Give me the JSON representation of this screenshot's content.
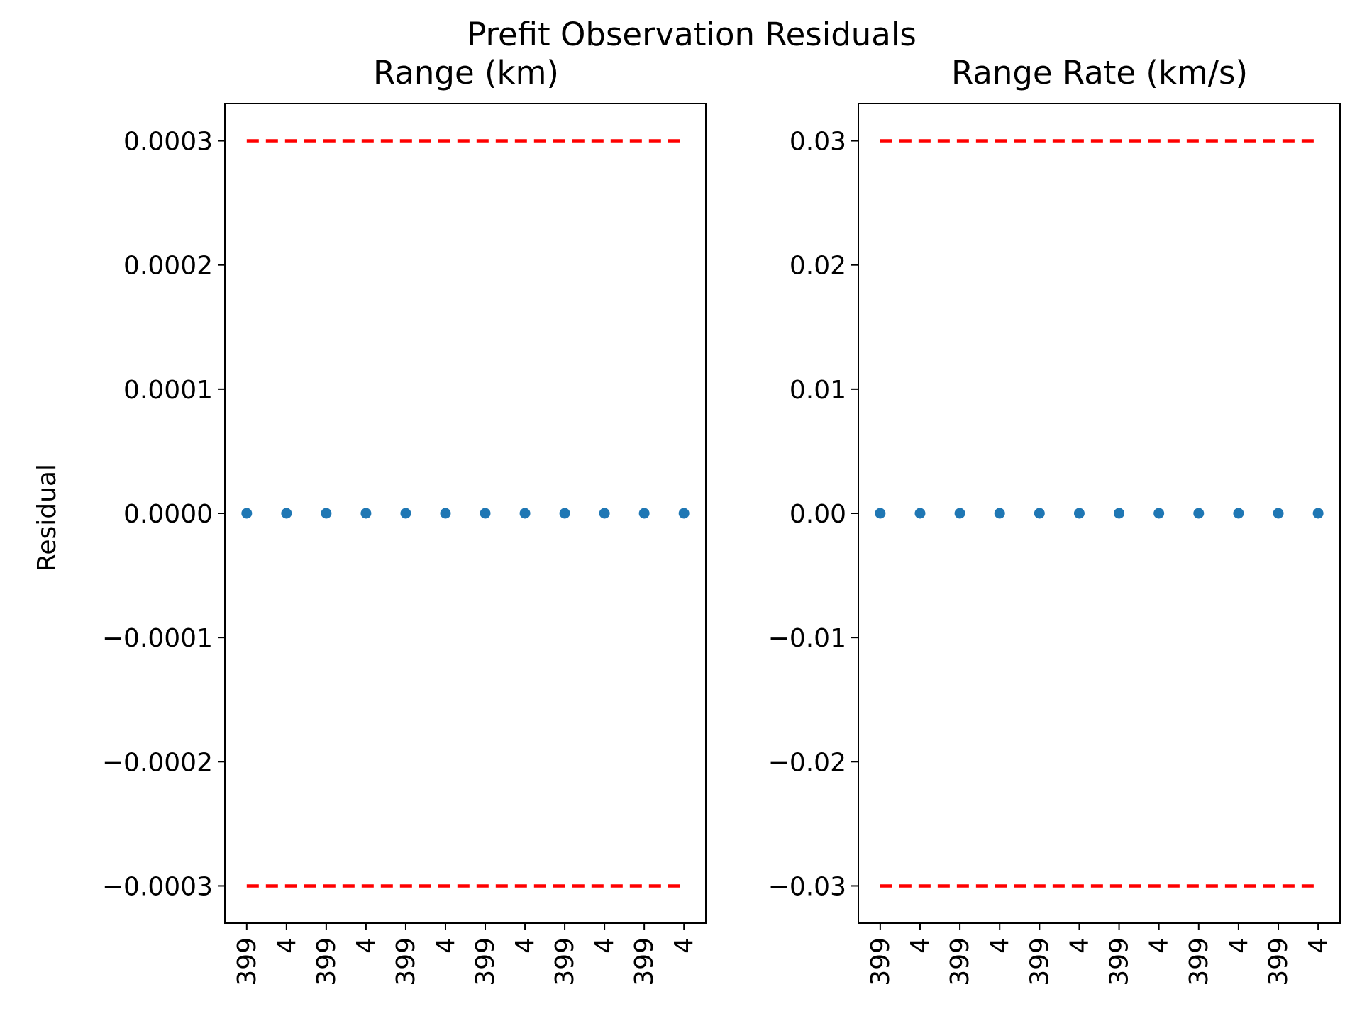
{
  "figure": {
    "suptitle": "Prefit Observation Residuals",
    "ylabel": "Residual"
  },
  "colors": {
    "points": "#1f77b4",
    "threshold": "#ff0000",
    "axes": "#000000",
    "background": "#ffffff"
  },
  "chart_data": [
    {
      "type": "scatter",
      "title": "Range (km)",
      "ylabel": "Residual",
      "ylim": [
        -0.00033,
        0.00033
      ],
      "yticks": [
        0.0003,
        0.0002,
        0.0001,
        0.0,
        -0.0001,
        -0.0002,
        -0.0003
      ],
      "ytick_labels": [
        "0.0003",
        "0.0002",
        "0.0001",
        "0.0000",
        "−0.0001",
        "−0.0002",
        "−0.0003"
      ],
      "xtick_labels": [
        "399",
        "4",
        "399",
        "4",
        "399",
        "4",
        "399",
        "4",
        "399",
        "4",
        "399",
        "4"
      ],
      "points": {
        "x": [
          0,
          1,
          2,
          3,
          4,
          5,
          6,
          7,
          8,
          9,
          10,
          11
        ],
        "y": [
          0,
          0,
          0,
          0,
          0,
          0,
          0,
          0,
          0,
          0,
          0,
          0
        ]
      },
      "threshold_lines": [
        0.0003,
        -0.0003
      ],
      "grid": false
    },
    {
      "type": "scatter",
      "title": "Range Rate (km/s)",
      "ylim": [
        -0.033,
        0.033
      ],
      "yticks": [
        0.03,
        0.02,
        0.01,
        0.0,
        -0.01,
        -0.02,
        -0.03
      ],
      "ytick_labels": [
        "0.03",
        "0.02",
        "0.01",
        "0.00",
        "−0.01",
        "−0.02",
        "−0.03"
      ],
      "xtick_labels": [
        "399",
        "4",
        "399",
        "4",
        "399",
        "4",
        "399",
        "4",
        "399",
        "4",
        "399",
        "4"
      ],
      "points": {
        "x": [
          0,
          1,
          2,
          3,
          4,
          5,
          6,
          7,
          8,
          9,
          10,
          11
        ],
        "y": [
          0,
          0,
          0,
          0,
          0,
          0,
          0,
          0,
          0,
          0,
          0,
          0
        ]
      },
      "threshold_lines": [
        0.03,
        -0.03
      ],
      "grid": false
    }
  ]
}
